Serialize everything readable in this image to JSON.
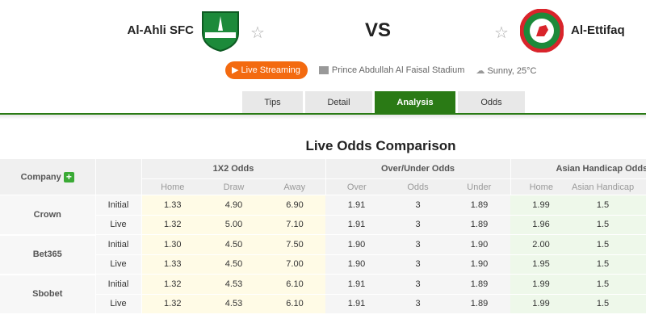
{
  "match": {
    "home": "Al-Ahli SFC",
    "away": "Al-Ettifaq",
    "vs": "VS",
    "live_label": "Live Streaming",
    "stadium": "Prince Abdullah Al Faisal Stadium",
    "weather": "Sunny, 25°C"
  },
  "tabs": [
    {
      "label": "Tips"
    },
    {
      "label": "Detail"
    },
    {
      "label": "Analysis",
      "active": true
    },
    {
      "label": "Odds"
    }
  ],
  "section_title": "Live Odds Comparison",
  "colors": {
    "accent": "#2a7a15",
    "live": "#f36a10"
  },
  "table": {
    "company_header": "Company",
    "groups": [
      "1X2 Odds",
      "Over/Under Odds",
      "Asian Handicap Odds"
    ],
    "subheaders": [
      "Home",
      "Draw",
      "Away",
      "Over",
      "Odds",
      "Under",
      "Home",
      "Asian Handicap"
    ],
    "companies": [
      {
        "name": "Crown",
        "rows": [
          {
            "type": "Initial",
            "v": [
              "1.33",
              "4.90",
              "6.90",
              "1.91",
              "3",
              "1.89",
              "1.99",
              "1.5"
            ]
          },
          {
            "type": "Live",
            "v": [
              "1.32",
              "5.00",
              "7.10",
              "1.91",
              "3",
              "1.89",
              "1.96",
              "1.5"
            ]
          }
        ]
      },
      {
        "name": "Bet365",
        "rows": [
          {
            "type": "Initial",
            "v": [
              "1.30",
              "4.50",
              "7.50",
              "1.90",
              "3",
              "1.90",
              "2.00",
              "1.5"
            ]
          },
          {
            "type": "Live",
            "v": [
              "1.33",
              "4.50",
              "7.00",
              "1.90",
              "3",
              "1.90",
              "1.95",
              "1.5"
            ]
          }
        ]
      },
      {
        "name": "Sbobet",
        "rows": [
          {
            "type": "Initial",
            "v": [
              "1.32",
              "4.53",
              "6.10",
              "1.91",
              "3",
              "1.89",
              "1.99",
              "1.5"
            ]
          },
          {
            "type": "Live",
            "v": [
              "1.32",
              "4.53",
              "6.10",
              "1.91",
              "3",
              "1.89",
              "1.99",
              "1.5"
            ]
          }
        ]
      }
    ]
  }
}
